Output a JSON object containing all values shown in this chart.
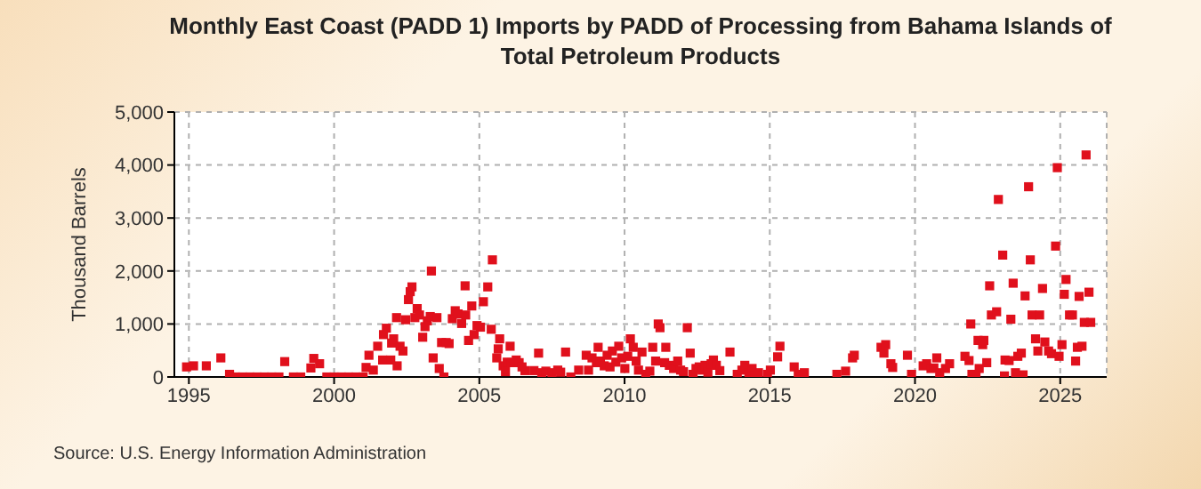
{
  "chart_data": {
    "type": "scatter",
    "title": "Monthly East Coast (PADD 1) Imports by PADD of Processing from Bahama Islands of Total Petroleum Products",
    "ylabel": "Thousand Barrels",
    "annotations": [
      "Source: U.S. Energy Information Administration"
    ],
    "x": [
      1994.92,
      1995.16,
      1995.6,
      1996.1,
      1996.4,
      1996.6,
      1996.85,
      1997.1,
      1997.35,
      1997.6,
      1997.85,
      1998.1,
      1998.3,
      1998.6,
      1998.85,
      1999.2,
      1999.3,
      1999.5,
      1999.75,
      2000.0,
      2000.25,
      2000.5,
      2000.75,
      2001.0,
      2001.1,
      2001.2,
      2001.35,
      2001.5,
      2001.67,
      2001.7,
      2001.8,
      2001.95,
      2001.98,
      2002.05,
      2002.15,
      2002.17,
      2002.27,
      2002.37,
      2002.46,
      2002.56,
      2002.62,
      2002.68,
      2002.78,
      2002.86,
      2002.94,
      2003.05,
      2003.13,
      2003.21,
      2003.31,
      2003.35,
      2003.41,
      2003.54,
      2003.62,
      2003.7,
      2003.78,
      2003.86,
      2003.96,
      2004.07,
      2004.17,
      2004.27,
      2004.39,
      2004.51,
      2004.53,
      2004.63,
      2004.74,
      2004.82,
      2004.92,
      2005.04,
      2005.14,
      2005.29,
      2005.45,
      2005.41,
      2005.6,
      2005.7,
      2005.65,
      2005.82,
      2005.9,
      2005.96,
      2006.06,
      2006.11,
      2006.27,
      2006.37,
      2006.47,
      2006.57,
      2006.88,
      2007.04,
      2007.15,
      2007.29,
      2007.5,
      2007.7,
      2007.8,
      2007.97,
      2008.15,
      2008.42,
      2008.68,
      2008.76,
      2008.88,
      2009.03,
      2009.09,
      2009.17,
      2009.3,
      2009.4,
      2009.5,
      2009.58,
      2009.7,
      2009.8,
      2009.9,
      2010.01,
      2010.11,
      2010.2,
      2010.3,
      2010.4,
      2010.48,
      2010.6,
      2010.73,
      2010.87,
      2010.97,
      2011.07,
      2011.16,
      2011.22,
      2011.38,
      2011.42,
      2011.54,
      2011.69,
      2011.83,
      2011.93,
      2012.03,
      2012.16,
      2012.26,
      2012.36,
      2012.46,
      2012.57,
      2012.67,
      2012.77,
      2012.87,
      2012.98,
      2013.06,
      2013.16,
      2013.28,
      2013.63,
      2013.88,
      2014.04,
      2014.14,
      2014.28,
      2014.39,
      2014.49,
      2014.61,
      2014.92,
      2015.02,
      2015.27,
      2015.35,
      2015.84,
      2015.98,
      2016.19,
      2017.31,
      2017.61,
      2017.85,
      2017.91,
      2018.83,
      2018.99,
      2018.93,
      2019.17,
      2019.23,
      2019.74,
      2019.88,
      2020.28,
      2020.4,
      2020.55,
      2020.65,
      2020.75,
      2020.85,
      2021.05,
      2021.19,
      2021.72,
      2021.86,
      2021.92,
      2021.96,
      2022.1,
      2022.17,
      2022.21,
      2022.33,
      2022.37,
      2022.47,
      2022.57,
      2022.63,
      2022.81,
      2022.87,
      2023.02,
      2023.08,
      2023.1,
      2023.24,
      2023.3,
      2023.38,
      2023.46,
      2023.54,
      2023.66,
      2023.72,
      2023.79,
      2023.91,
      2023.97,
      2024.03,
      2024.15,
      2024.23,
      2024.29,
      2024.39,
      2024.47,
      2024.6,
      2024.7,
      2024.84,
      2024.9,
      2024.96,
      2025.06,
      2025.14,
      2025.2,
      2025.32,
      2025.42,
      2025.53,
      2025.59,
      2025.65,
      2025.75,
      2025.83,
      2025.89,
      2025.99,
      2026.05
    ],
    "series": [
      {
        "color": "#e0101c",
        "values": [
          190,
          210,
          210,
          360,
          50,
          0,
          0,
          0,
          0,
          0,
          0,
          0,
          290,
          0,
          0,
          170,
          350,
          250,
          0,
          0,
          0,
          0,
          0,
          0,
          180,
          410,
          130,
          580,
          320,
          800,
          920,
          320,
          640,
          720,
          1120,
          210,
          580,
          490,
          1080,
          1460,
          1610,
          1700,
          1120,
          1290,
          1170,
          750,
          950,
          1060,
          1140,
          2000,
          360,
          1120,
          160,
          650,
          0,
          650,
          630,
          1100,
          1250,
          1190,
          1010,
          1720,
          1170,
          690,
          1340,
          800,
          970,
          940,
          1420,
          1700,
          2210,
          900,
          360,
          720,
          530,
          210,
          100,
          280,
          580,
          270,
          320,
          270,
          190,
          120,
          120,
          450,
          80,
          110,
          80,
          130,
          90,
          470,
          0,
          130,
          410,
          130,
          360,
          270,
          560,
          300,
          210,
          410,
          190,
          490,
          280,
          580,
          360,
          160,
          390,
          720,
          560,
          300,
          130,
          470,
          50,
          110,
          560,
          300,
          1000,
          930,
          270,
          560,
          220,
          160,
          300,
          130,
          100,
          930,
          450,
          50,
          160,
          190,
          130,
          220,
          90,
          250,
          320,
          220,
          120,
          470,
          50,
          130,
          220,
          80,
          160,
          20,
          80,
          50,
          130,
          380,
          580,
          190,
          50,
          80,
          50,
          110,
          360,
          410,
          560,
          610,
          450,
          250,
          180,
          410,
          50,
          210,
          250,
          160,
          170,
          360,
          80,
          160,
          250,
          390,
          310,
          1000,
          50,
          40,
          690,
          160,
          610,
          690,
          270,
          1720,
          1170,
          1230,
          3350,
          2300,
          20,
          320,
          310,
          1090,
          1770,
          80,
          390,
          450,
          40,
          1530,
          3590,
          2210,
          1170,
          720,
          490,
          1170,
          1670,
          660,
          490,
          440,
          2470,
          3950,
          390,
          610,
          1560,
          1840,
          1170,
          1170,
          300,
          560,
          1520,
          580,
          1030,
          4190,
          1600,
          1030
        ]
      }
    ],
    "xlim": [
      1994.5,
      2026.6
    ],
    "xticks": [
      1995,
      2000,
      2005,
      2010,
      2015,
      2020,
      2025
    ],
    "ylim": [
      0,
      5000
    ],
    "yticks": [
      {
        "value": 0,
        "label": "0"
      },
      {
        "value": 1000,
        "label": "1,000"
      },
      {
        "value": 2000,
        "label": "2,000"
      },
      {
        "value": 3000,
        "label": "3,000"
      },
      {
        "value": 4000,
        "label": "4,000"
      },
      {
        "value": 5000,
        "label": "5,000"
      }
    ],
    "grid": true,
    "marker": "square"
  }
}
